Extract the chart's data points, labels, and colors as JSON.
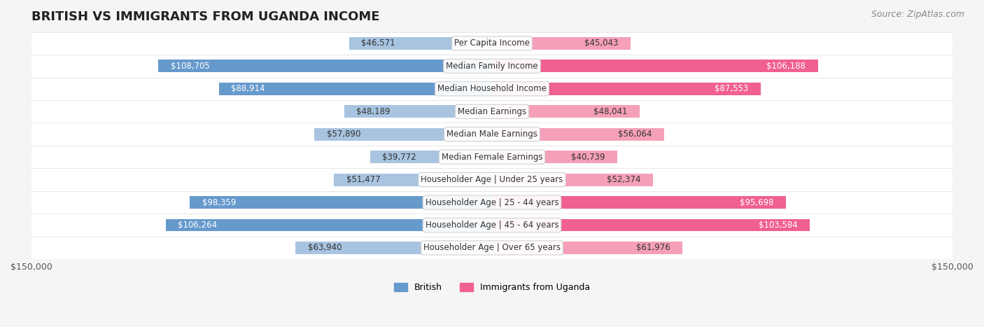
{
  "title": "BRITISH VS IMMIGRANTS FROM UGANDA INCOME",
  "source": "Source: ZipAtlas.com",
  "categories": [
    "Per Capita Income",
    "Median Family Income",
    "Median Household Income",
    "Median Earnings",
    "Median Male Earnings",
    "Median Female Earnings",
    "Householder Age | Under 25 years",
    "Householder Age | 25 - 44 years",
    "Householder Age | 45 - 64 years",
    "Householder Age | Over 65 years"
  ],
  "british_values": [
    46571,
    108705,
    88914,
    48189,
    57890,
    39772,
    51477,
    98359,
    106264,
    63940
  ],
  "uganda_values": [
    45043,
    106188,
    87553,
    48041,
    56064,
    40739,
    52374,
    95698,
    103584,
    61976
  ],
  "british_labels": [
    "$46,571",
    "$108,705",
    "$88,914",
    "$48,189",
    "$57,890",
    "$39,772",
    "$51,477",
    "$98,359",
    "$106,264",
    "$63,940"
  ],
  "uganda_labels": [
    "$45,043",
    "$106,188",
    "$87,553",
    "$48,041",
    "$56,064",
    "$40,739",
    "$52,374",
    "$95,698",
    "$103,584",
    "$61,976"
  ],
  "british_color_light": "#a8c4e0",
  "british_color_dark": "#6699cc",
  "uganda_color_light": "#f5a0b8",
  "uganda_color_dark": "#f06090",
  "british_dark_threshold": 70000,
  "uganda_dark_threshold": 70000,
  "max_value": 150000,
  "legend_british": "British",
  "legend_uganda": "Immigrants from Uganda",
  "x_label_left": "$150,000",
  "x_label_right": "$150,000",
  "bg_color": "#f5f5f5",
  "row_bg_color": "#ffffff",
  "bar_height": 0.55,
  "title_fontsize": 13,
  "source_fontsize": 9,
  "label_fontsize": 8.5,
  "category_fontsize": 8.5
}
